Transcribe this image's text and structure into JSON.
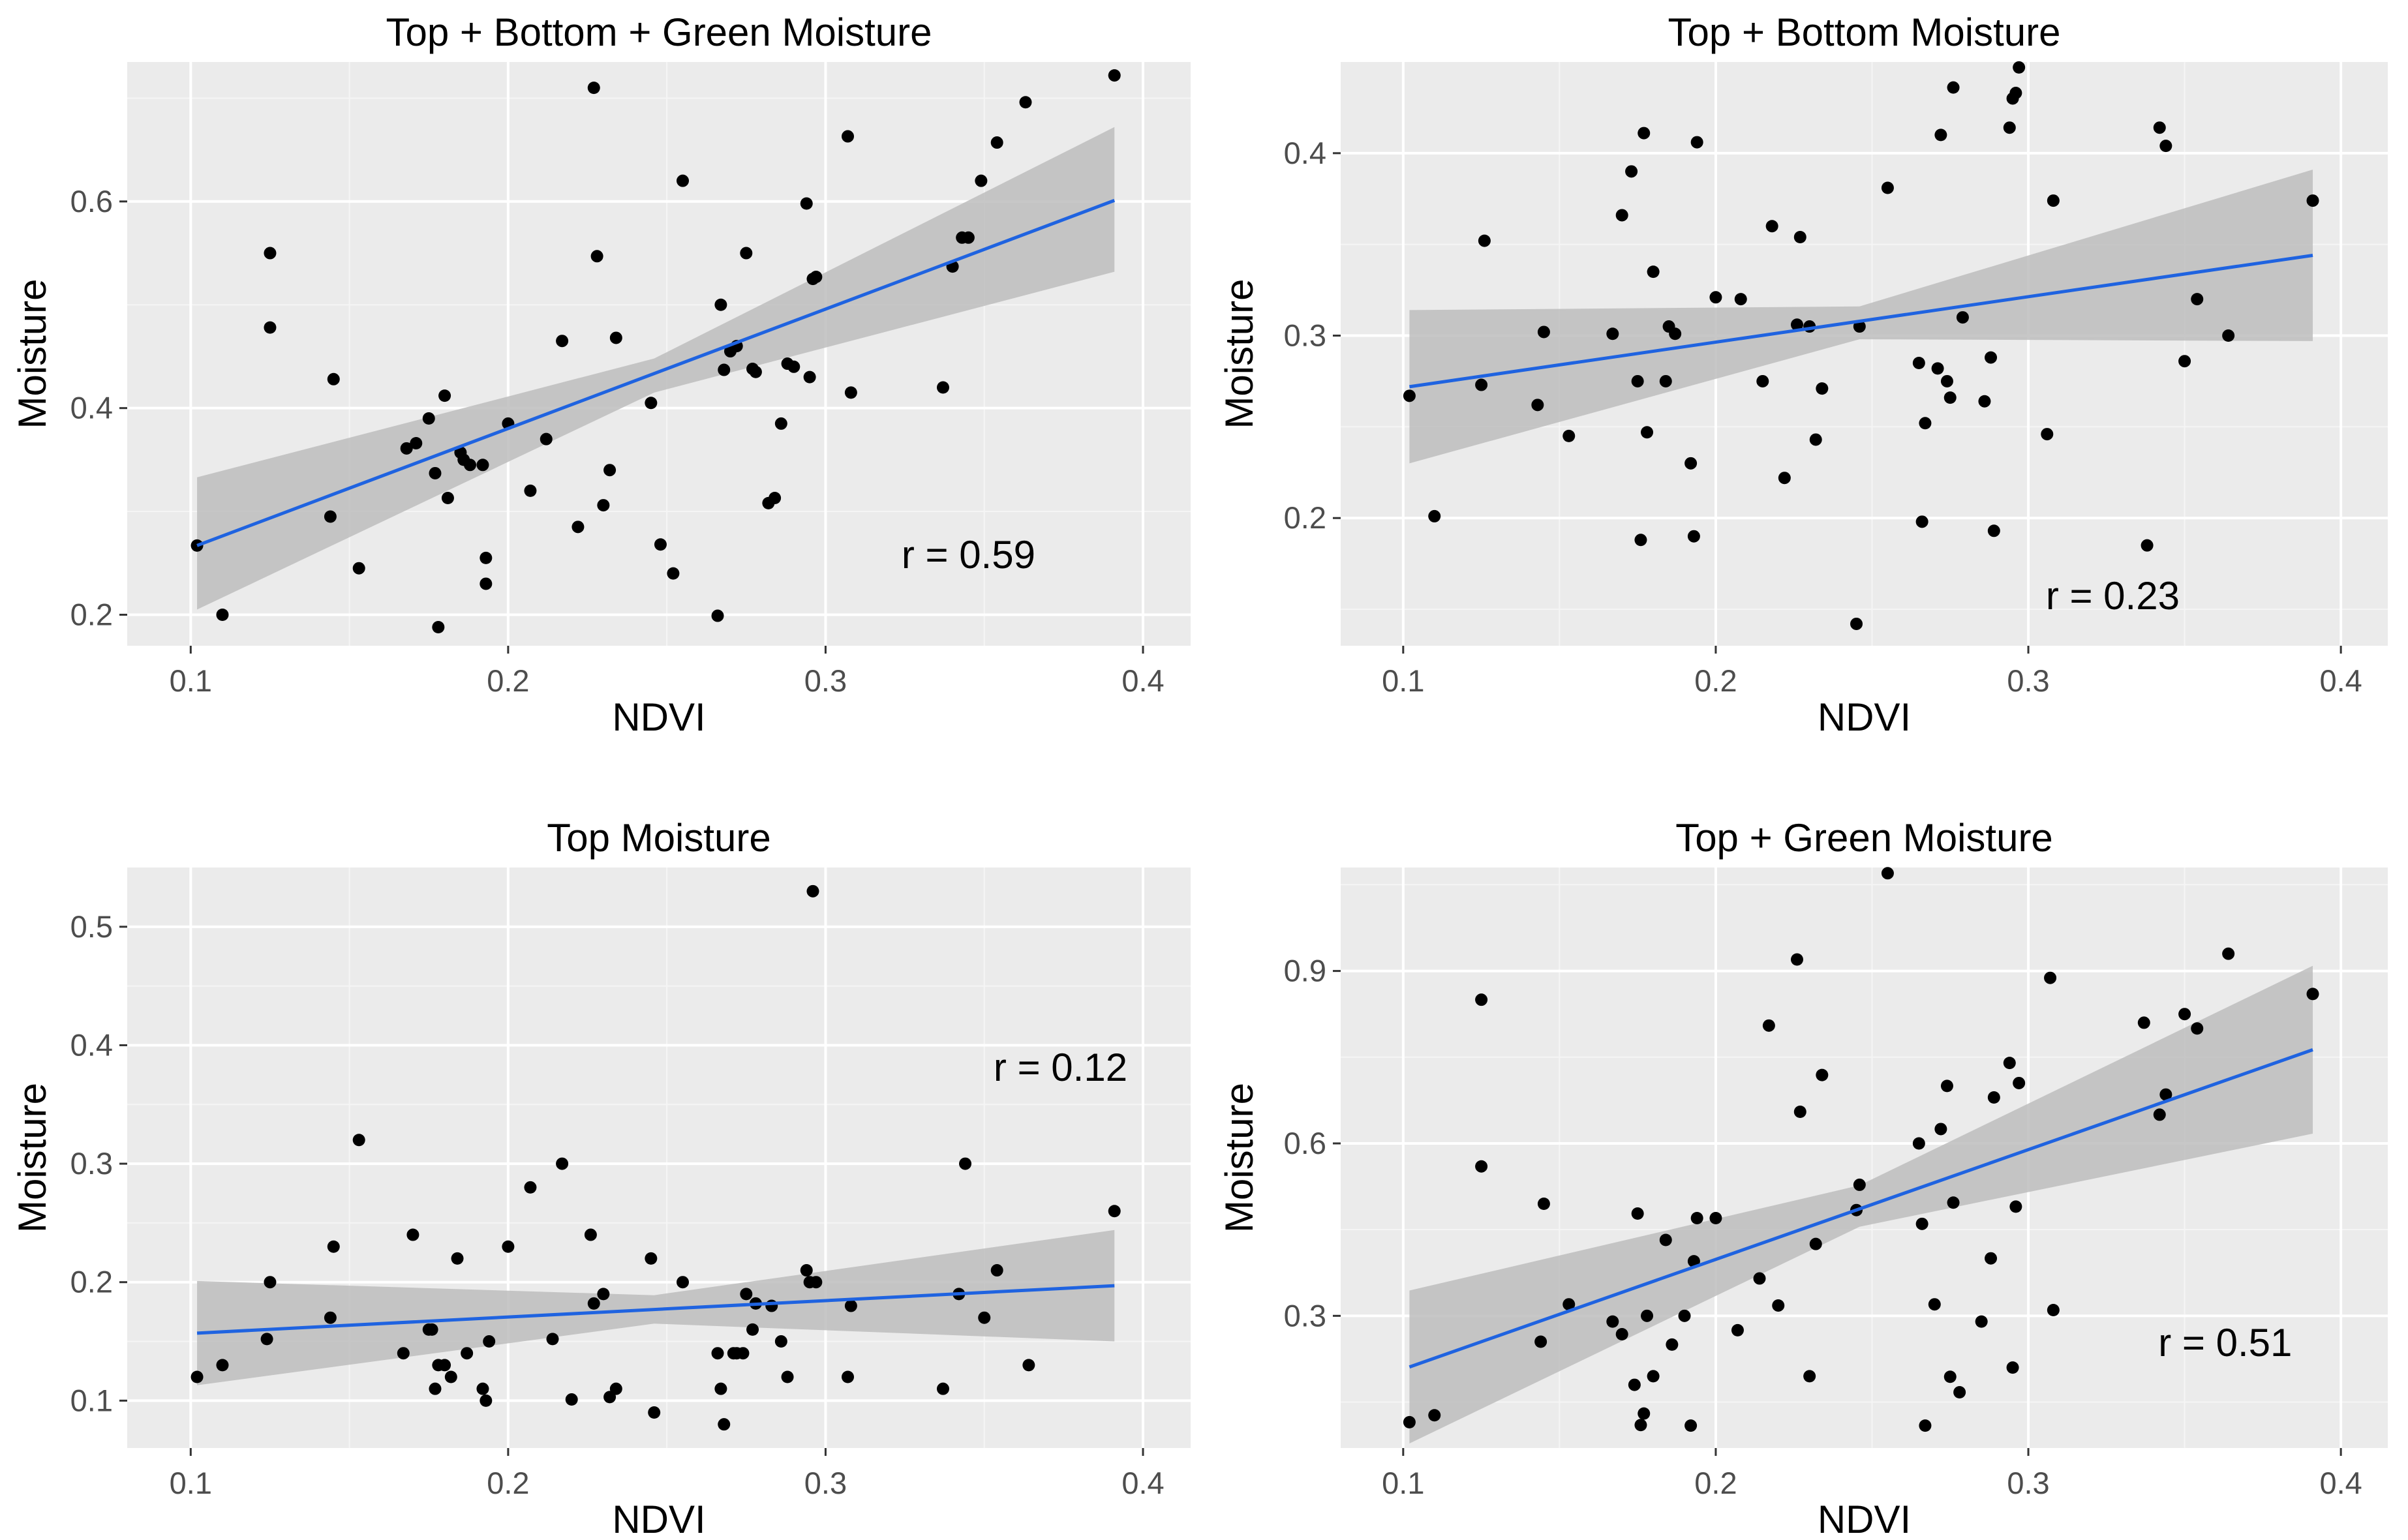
{
  "style": {
    "panel_bg": "#ebebeb",
    "grid_major": "#ffffff",
    "grid_minor": "#f5f5f5",
    "point_color": "#000000",
    "fit_line_color": "#1f63e0",
    "ci_band_color": "#bdbdbd",
    "tick_color": "#333333"
  },
  "chart_data": [
    {
      "type": "scatter",
      "title": "Top + Bottom + Green Moisture",
      "xlabel": "NDVI",
      "ylabel": "Moisture",
      "xlim": [
        0.08,
        0.415
      ],
      "ylim": [
        0.17,
        0.735
      ],
      "x_ticks": [
        0.1,
        0.2,
        0.3,
        0.4
      ],
      "x_tick_labels": [
        "0.1",
        "0.2",
        "0.3",
        "0.4"
      ],
      "y_ticks": [
        0.2,
        0.4,
        0.6
      ],
      "y_tick_labels": [
        "0.2",
        "0.4",
        "0.6"
      ],
      "grid": true,
      "annotation": {
        "text": "r = 0.59",
        "x": 0.345,
        "y": 0.245
      },
      "fit_line": {
        "x": [
          0.102,
          0.391
        ],
        "y": [
          0.267,
          0.601
        ]
      },
      "ci_band": {
        "x": [
          0.102,
          0.246,
          0.391
        ],
        "lower": [
          0.205,
          0.415,
          0.532
        ],
        "upper": [
          0.333,
          0.448,
          0.672
        ]
      },
      "points": {
        "x": [
          0.102,
          0.11,
          0.125,
          0.125,
          0.144,
          0.145,
          0.153,
          0.168,
          0.171,
          0.175,
          0.177,
          0.178,
          0.18,
          0.181,
          0.185,
          0.186,
          0.188,
          0.192,
          0.193,
          0.193,
          0.2,
          0.207,
          0.212,
          0.217,
          0.222,
          0.227,
          0.228,
          0.23,
          0.232,
          0.234,
          0.245,
          0.248,
          0.252,
          0.255,
          0.266,
          0.267,
          0.268,
          0.27,
          0.272,
          0.275,
          0.277,
          0.278,
          0.282,
          0.284,
          0.286,
          0.288,
          0.29,
          0.294,
          0.295,
          0.296,
          0.297,
          0.307,
          0.308,
          0.337,
          0.34,
          0.343,
          0.345,
          0.349,
          0.354,
          0.363,
          0.391
        ],
        "y": [
          0.267,
          0.2,
          0.55,
          0.478,
          0.295,
          0.428,
          0.245,
          0.361,
          0.366,
          0.39,
          0.337,
          0.188,
          0.412,
          0.313,
          0.357,
          0.35,
          0.345,
          0.345,
          0.23,
          0.255,
          0.385,
          0.32,
          0.37,
          0.465,
          0.285,
          0.71,
          0.547,
          0.306,
          0.34,
          0.468,
          0.405,
          0.268,
          0.24,
          0.62,
          0.199,
          0.5,
          0.437,
          0.455,
          0.46,
          0.55,
          0.438,
          0.435,
          0.308,
          0.313,
          0.385,
          0.443,
          0.44,
          0.598,
          0.43,
          0.525,
          0.527,
          0.663,
          0.415,
          0.42,
          0.537,
          0.565,
          0.565,
          0.62,
          0.657,
          0.696,
          0.722
        ]
      }
    },
    {
      "type": "scatter",
      "title": "Top + Bottom Moisture",
      "xlabel": "NDVI",
      "ylabel": "Moisture",
      "xlim": [
        0.08,
        0.415
      ],
      "ylim": [
        0.13,
        0.45
      ],
      "x_ticks": [
        0.1,
        0.2,
        0.3,
        0.4
      ],
      "x_tick_labels": [
        "0.1",
        "0.2",
        "0.3",
        "0.4"
      ],
      "y_ticks": [
        0.2,
        0.3,
        0.4
      ],
      "y_tick_labels": [
        "0.2",
        "0.3",
        "0.4"
      ],
      "grid": true,
      "annotation": {
        "text": "r = 0.23",
        "x": 0.327,
        "y": 0.15
      },
      "fit_line": {
        "x": [
          0.102,
          0.391
        ],
        "y": [
          0.272,
          0.344
        ]
      },
      "ci_band": {
        "x": [
          0.102,
          0.246,
          0.391
        ],
        "lower": [
          0.23,
          0.298,
          0.297
        ],
        "upper": [
          0.314,
          0.316,
          0.391
        ]
      },
      "points": {
        "x": [
          0.102,
          0.11,
          0.125,
          0.126,
          0.143,
          0.145,
          0.153,
          0.167,
          0.17,
          0.173,
          0.175,
          0.176,
          0.177,
          0.178,
          0.18,
          0.184,
          0.185,
          0.187,
          0.192,
          0.193,
          0.194,
          0.2,
          0.208,
          0.215,
          0.218,
          0.222,
          0.226,
          0.227,
          0.23,
          0.232,
          0.234,
          0.245,
          0.246,
          0.255,
          0.265,
          0.266,
          0.267,
          0.271,
          0.272,
          0.274,
          0.275,
          0.276,
          0.279,
          0.286,
          0.288,
          0.289,
          0.294,
          0.295,
          0.296,
          0.297,
          0.306,
          0.308,
          0.338,
          0.342,
          0.344,
          0.35,
          0.354,
          0.364,
          0.391
        ],
        "y": [
          0.267,
          0.201,
          0.273,
          0.352,
          0.262,
          0.302,
          0.245,
          0.301,
          0.366,
          0.39,
          0.275,
          0.188,
          0.411,
          0.247,
          0.335,
          0.275,
          0.305,
          0.301,
          0.23,
          0.19,
          0.406,
          0.321,
          0.32,
          0.275,
          0.36,
          0.222,
          0.306,
          0.354,
          0.305,
          0.243,
          0.271,
          0.142,
          0.305,
          0.381,
          0.285,
          0.198,
          0.252,
          0.282,
          0.41,
          0.275,
          0.266,
          0.436,
          0.31,
          0.264,
          0.288,
          0.193,
          0.414,
          0.43,
          0.433,
          0.447,
          0.246,
          0.374,
          0.185,
          0.414,
          0.404,
          0.286,
          0.32,
          0.3,
          0.374
        ]
      }
    },
    {
      "type": "scatter",
      "title": "Top Moisture",
      "xlabel": "NDVI",
      "ylabel": "Moisture",
      "xlim": [
        0.08,
        0.415
      ],
      "ylim": [
        0.06,
        0.55
      ],
      "x_ticks": [
        0.1,
        0.2,
        0.3,
        0.4
      ],
      "x_tick_labels": [
        "0.1",
        "0.2",
        "0.3",
        "0.4"
      ],
      "y_ticks": [
        0.1,
        0.2,
        0.3,
        0.4,
        0.5
      ],
      "y_tick_labels": [
        "0.1",
        "0.2",
        "0.3",
        "0.4",
        "0.5"
      ],
      "grid": true,
      "annotation": {
        "text": "r = 0.12",
        "x": 0.374,
        "y": 0.37
      },
      "fit_line": {
        "x": [
          0.102,
          0.391
        ],
        "y": [
          0.157,
          0.197
        ]
      },
      "ci_band": {
        "x": [
          0.102,
          0.246,
          0.391
        ],
        "lower": [
          0.113,
          0.165,
          0.15
        ],
        "upper": [
          0.201,
          0.189,
          0.244
        ]
      },
      "points": {
        "x": [
          0.102,
          0.11,
          0.124,
          0.125,
          0.144,
          0.145,
          0.153,
          0.167,
          0.17,
          0.175,
          0.176,
          0.177,
          0.178,
          0.18,
          0.182,
          0.184,
          0.187,
          0.192,
          0.193,
          0.194,
          0.2,
          0.207,
          0.214,
          0.217,
          0.22,
          0.226,
          0.227,
          0.23,
          0.232,
          0.234,
          0.245,
          0.246,
          0.255,
          0.266,
          0.267,
          0.268,
          0.271,
          0.272,
          0.274,
          0.275,
          0.277,
          0.278,
          0.283,
          0.286,
          0.288,
          0.294,
          0.295,
          0.296,
          0.297,
          0.307,
          0.308,
          0.337,
          0.342,
          0.344,
          0.35,
          0.354,
          0.364,
          0.391
        ],
        "y": [
          0.12,
          0.13,
          0.152,
          0.2,
          0.17,
          0.23,
          0.32,
          0.14,
          0.24,
          0.16,
          0.16,
          0.11,
          0.13,
          0.13,
          0.12,
          0.22,
          0.14,
          0.11,
          0.1,
          0.15,
          0.23,
          0.28,
          0.152,
          0.3,
          0.101,
          0.24,
          0.182,
          0.19,
          0.103,
          0.11,
          0.22,
          0.09,
          0.2,
          0.14,
          0.11,
          0.08,
          0.14,
          0.14,
          0.14,
          0.19,
          0.16,
          0.182,
          0.18,
          0.15,
          0.12,
          0.21,
          0.2,
          0.53,
          0.2,
          0.12,
          0.18,
          0.11,
          0.19,
          0.3,
          0.17,
          0.21,
          0.13,
          0.26
        ]
      }
    },
    {
      "type": "scatter",
      "title": "Top + Green Moisture",
      "xlabel": "NDVI",
      "ylabel": "Moisture",
      "xlim": [
        0.08,
        0.415
      ],
      "ylim": [
        0.07,
        1.08
      ],
      "x_ticks": [
        0.1,
        0.2,
        0.3,
        0.4
      ],
      "x_tick_labels": [
        "0.1",
        "0.2",
        "0.3",
        "0.4"
      ],
      "y_ticks": [
        0.3,
        0.6,
        0.9
      ],
      "y_tick_labels": [
        "0.3",
        "0.6",
        "0.9"
      ],
      "grid": true,
      "annotation": {
        "text": "r = 0.51",
        "x": 0.363,
        "y": 0.23
      },
      "fit_line": {
        "x": [
          0.102,
          0.391
        ],
        "y": [
          0.211,
          0.763
        ]
      },
      "ci_band": {
        "x": [
          0.102,
          0.246,
          0.391
        ],
        "lower": [
          0.078,
          0.455,
          0.617
        ],
        "upper": [
          0.344,
          0.527,
          0.909
        ]
      },
      "points": {
        "x": [
          0.102,
          0.11,
          0.125,
          0.125,
          0.144,
          0.145,
          0.153,
          0.167,
          0.17,
          0.174,
          0.175,
          0.176,
          0.177,
          0.178,
          0.18,
          0.184,
          0.186,
          0.19,
          0.192,
          0.193,
          0.194,
          0.2,
          0.207,
          0.214,
          0.217,
          0.22,
          0.226,
          0.227,
          0.23,
          0.232,
          0.234,
          0.245,
          0.246,
          0.255,
          0.265,
          0.266,
          0.267,
          0.27,
          0.272,
          0.274,
          0.275,
          0.276,
          0.278,
          0.285,
          0.288,
          0.289,
          0.294,
          0.295,
          0.296,
          0.297,
          0.307,
          0.308,
          0.337,
          0.342,
          0.344,
          0.35,
          0.354,
          0.364,
          0.391
        ],
        "y": [
          0.115,
          0.127,
          0.85,
          0.56,
          0.255,
          0.495,
          0.32,
          0.29,
          0.268,
          0.18,
          0.478,
          0.11,
          0.13,
          0.3,
          0.195,
          0.432,
          0.25,
          0.3,
          0.109,
          0.395,
          0.47,
          0.47,
          0.275,
          0.365,
          0.805,
          0.318,
          0.92,
          0.655,
          0.195,
          0.425,
          0.719,
          0.484,
          0.528,
          1.07,
          0.6,
          0.46,
          0.109,
          0.32,
          0.625,
          0.7,
          0.194,
          0.497,
          0.167,
          0.29,
          0.4,
          0.68,
          0.74,
          0.21,
          0.49,
          0.705,
          0.888,
          0.31,
          0.81,
          0.65,
          0.685,
          0.825,
          0.8,
          0.93,
          0.86
        ]
      }
    }
  ]
}
